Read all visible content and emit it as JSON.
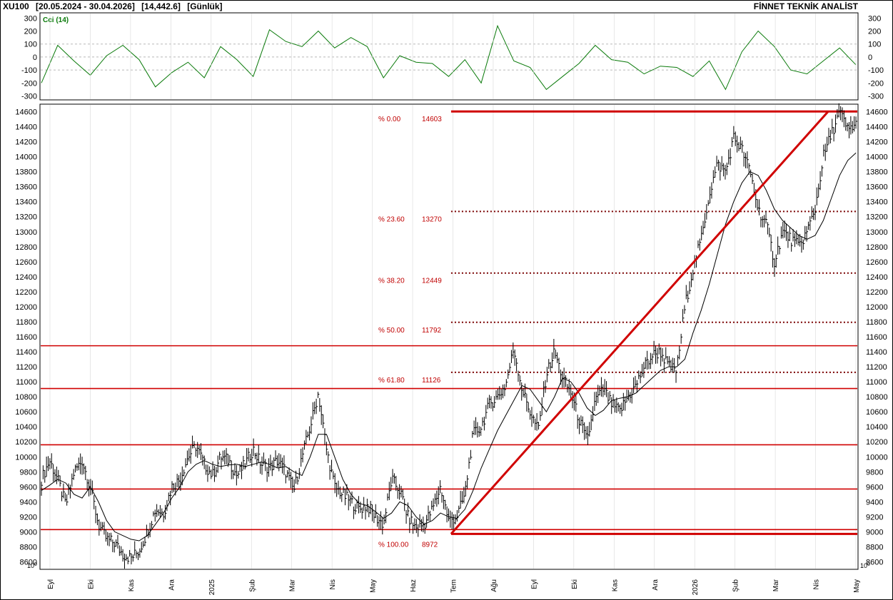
{
  "header": {
    "symbol": "XU100",
    "range": "[20.05.2024 - 30.04.2026]",
    "last": "[14,442.6]",
    "period": "[Günlük]",
    "source": "FİNNET TEKNİK ANALİST"
  },
  "colors": {
    "price": "#000000",
    "cci": "#0a7a0a",
    "levels": "#d00000",
    "fib_text": "#c00000",
    "grid": "#b8b8b8"
  },
  "chart_data": [
    {
      "type": "line",
      "name": "CCI",
      "label": "Cci (14)",
      "ylim": [
        -330,
        340
      ],
      "yticks": [
        "300",
        "200",
        "100",
        "0",
        "-100",
        "-200",
        "-300"
      ],
      "guides": [
        100,
        0,
        -100
      ],
      "x": [
        0,
        2,
        4,
        6,
        8,
        10,
        12,
        14,
        16,
        18,
        20,
        22,
        24,
        26,
        28,
        30,
        32,
        34,
        36,
        38,
        40,
        42,
        44,
        46,
        48,
        50,
        52,
        54,
        56,
        58,
        60,
        62,
        64,
        66,
        68,
        70,
        72,
        74,
        76,
        78,
        80,
        82,
        84,
        86,
        88,
        90,
        92,
        94,
        96,
        98,
        100
      ],
      "values": [
        -200,
        90,
        -30,
        -140,
        10,
        90,
        -20,
        -230,
        -120,
        -40,
        -160,
        80,
        -20,
        -150,
        210,
        120,
        80,
        200,
        70,
        150,
        80,
        -160,
        10,
        -40,
        -50,
        -150,
        -20,
        -200,
        240,
        -30,
        -80,
        -250,
        -150,
        -50,
        90,
        -20,
        -40,
        -130,
        -70,
        -80,
        -150,
        -30,
        -250,
        40,
        200,
        80,
        -100,
        -130,
        -30,
        70,
        -60
      ]
    },
    {
      "type": "line",
      "name": "Price",
      "ylim": [
        8500,
        14700
      ],
      "yticks": [
        "14600",
        "14400",
        "14200",
        "14000",
        "13800",
        "13600",
        "13400",
        "13200",
        "13000",
        "12800",
        "12600",
        "12400",
        "12200",
        "12000",
        "11800",
        "11600",
        "11400",
        "11200",
        "11000",
        "10800",
        "10600",
        "10400",
        "10200",
        "10000",
        "9800",
        "9600",
        "9400",
        "9200",
        "9000",
        "8800",
        "8600"
      ],
      "x_tick_labels": [
        "Eyl",
        "Eki",
        "Kas",
        "Ara",
        "2025",
        "Şub",
        "Mar",
        "Nis",
        "May",
        "Haz",
        "Tem",
        "Ağu",
        "Eyl",
        "Eki",
        "Kas",
        "Ara",
        "2026",
        "Şub",
        "Mar",
        "Nis",
        "May"
      ],
      "exponent_label": "10^0",
      "series_x": [
        0,
        1,
        2,
        3,
        4,
        5,
        6,
        7,
        8,
        9,
        10,
        11,
        12,
        13,
        14,
        15,
        16,
        17,
        18,
        19,
        20,
        21,
        22,
        23,
        24,
        25,
        26,
        27,
        28,
        29,
        30,
        31,
        32,
        33,
        34,
        35,
        36,
        37,
        38,
        39,
        40,
        41,
        42,
        43,
        44,
        45,
        46,
        47,
        48,
        49,
        50,
        51,
        52,
        53,
        54,
        55,
        56,
        57,
        58,
        59,
        60,
        61,
        62,
        63,
        64,
        65,
        66,
        67,
        68,
        69,
        70,
        71,
        72,
        73,
        74,
        75,
        76,
        77,
        78,
        79,
        80,
        81,
        82,
        83,
        84,
        85,
        86,
        87,
        88,
        89,
        90,
        91,
        92,
        93,
        94,
        95,
        96,
        97,
        98,
        99,
        100
      ],
      "close": [
        9700,
        9950,
        9700,
        9350,
        9800,
        9950,
        9600,
        9100,
        8900,
        8850,
        8700,
        8650,
        8750,
        9000,
        9300,
        9250,
        9600,
        9700,
        10000,
        10150,
        9900,
        9750,
        10000,
        9950,
        9750,
        9900,
        10100,
        9900,
        9850,
        9950,
        9800,
        9550,
        10000,
        10400,
        10850,
        10100,
        9600,
        9500,
        9400,
        9300,
        9350,
        9200,
        9100,
        9700,
        9550,
        9200,
        9050,
        9100,
        9300,
        9600,
        9150,
        9200,
        9500,
        10300,
        10400,
        10700,
        10800,
        10950,
        11450,
        10900,
        10600,
        10350,
        11100,
        11400,
        11050,
        10850,
        10500,
        10200,
        10750,
        10900,
        10700,
        10600,
        10800,
        10950,
        11200,
        11350,
        11400,
        11200,
        11150,
        12000,
        12500,
        12900,
        13500,
        13900,
        13800,
        14250,
        14100,
        13800,
        13300,
        13100,
        12600,
        13000,
        12900,
        12800,
        13000,
        13300,
        14000,
        14300,
        14600,
        14350,
        14440
      ],
      "ma": [
        9550,
        9620,
        9700,
        9650,
        9500,
        9450,
        9600,
        9400,
        9150,
        9000,
        8950,
        8900,
        8880,
        8950,
        9100,
        9250,
        9450,
        9600,
        9800,
        9900,
        9950,
        9900,
        9870,
        9890,
        9900,
        9870,
        9900,
        9930,
        9900,
        9850,
        9870,
        9800,
        9750,
        10000,
        10300,
        10300,
        10000,
        9700,
        9500,
        9380,
        9350,
        9270,
        9180,
        9250,
        9400,
        9350,
        9200,
        9100,
        9150,
        9250,
        9200,
        9180,
        9300,
        9550,
        9850,
        10100,
        10350,
        10550,
        10750,
        10950,
        10900,
        10750,
        10600,
        10800,
        11050,
        11000,
        10850,
        10650,
        10550,
        10620,
        10750,
        10780,
        10800,
        10850,
        10950,
        11050,
        11150,
        11200,
        11200,
        11300,
        11650,
        11950,
        12300,
        12700,
        13100,
        13400,
        13650,
        13800,
        13750,
        13550,
        13300,
        13150,
        13050,
        12950,
        12900,
        12950,
        13150,
        13450,
        13750,
        13950,
        14050
      ]
    }
  ],
  "levels": {
    "horizontal": [
      11480,
      10910,
      10160,
      9570,
      9030
    ],
    "base": 8972,
    "top": 14603,
    "trend_start_x": 50.3,
    "trend_end_x": 96.6
  },
  "fibonacci": [
    {
      "pct": "% 0.00",
      "value": "14603",
      "level": 14603
    },
    {
      "pct": "% 23.60",
      "value": "13270",
      "level": 13270
    },
    {
      "pct": "% 38.20",
      "value": "12449",
      "level": 12449
    },
    {
      "pct": "% 50.00",
      "value": "11792",
      "level": 11792
    },
    {
      "pct": "% 61.80",
      "value": "11126",
      "level": 11126
    },
    {
      "pct": "% 100.00",
      "value": "8972",
      "level": 8972
    }
  ]
}
